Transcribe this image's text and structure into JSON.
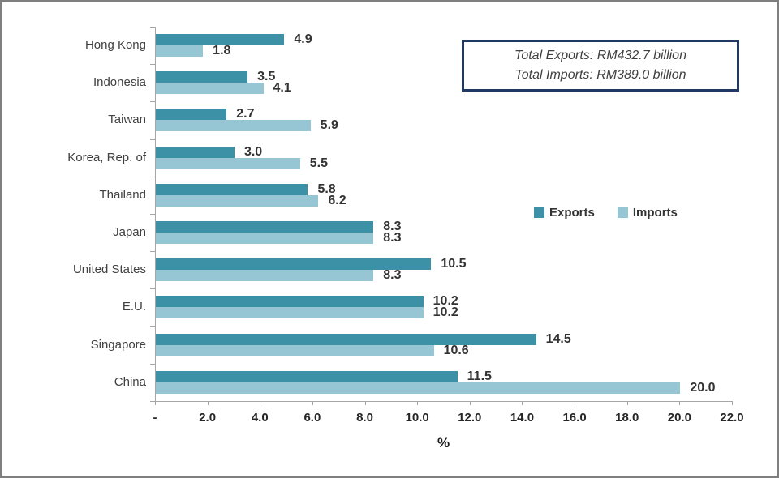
{
  "window": {
    "background_color": "#ffffff",
    "frame_border_color": "#7f7f7f"
  },
  "chart_data": {
    "type": "bar",
    "orientation": "horizontal",
    "categories": [
      "Hong Kong",
      "Indonesia",
      "Taiwan",
      "Korea, Rep. of",
      "Thailand",
      "Japan",
      "United States",
      "E.U.",
      "Singapore",
      "China"
    ],
    "series": [
      {
        "name": "Exports",
        "color": "#3d91a6",
        "values": [
          4.9,
          3.5,
          2.7,
          3.0,
          5.8,
          8.3,
          10.5,
          10.2,
          14.5,
          11.5
        ]
      },
      {
        "name": "Imports",
        "color": "#96c5d3",
        "values": [
          1.8,
          4.1,
          5.9,
          5.5,
          6.2,
          8.3,
          8.3,
          10.2,
          10.6,
          20.0
        ]
      }
    ],
    "xlabel": "%",
    "x_ticks": [
      "-",
      "2.0",
      "4.0",
      "6.0",
      "8.0",
      "10.0",
      "12.0",
      "14.0",
      "16.0",
      "18.0",
      "20.0",
      "22.0"
    ],
    "xlim": [
      0,
      22
    ],
    "grid": false,
    "legend_position": "middle-right",
    "data_labels": true
  },
  "legend": {
    "items": [
      {
        "label": "Exports",
        "color": "#3d91a6"
      },
      {
        "label": "Imports",
        "color": "#96c5d3"
      }
    ]
  },
  "annotation_box": {
    "border_color": "#1f3864",
    "lines": [
      "Total Exports: RM432.7 billion",
      "Total Imports: RM389.0 billion"
    ]
  }
}
